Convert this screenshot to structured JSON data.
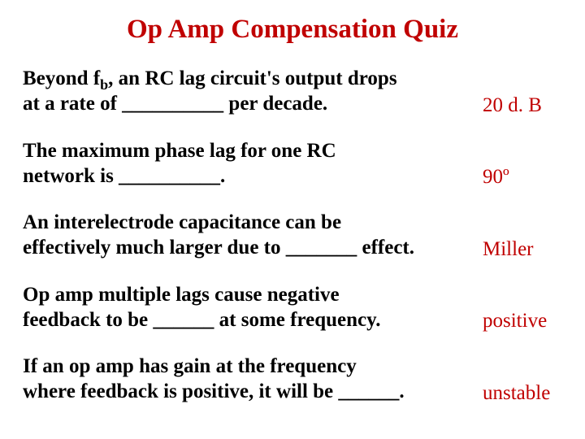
{
  "title": {
    "text": "Op Amp Compensation Quiz",
    "color": "#c00000",
    "fontsize": 33
  },
  "question_fontsize": 25,
  "answer_fontsize": 25,
  "answer_color": "#c00000",
  "items": [
    {
      "q_line1": "Beyond f",
      "q_sub": "b",
      "q_line1b": ", an RC lag circuit's output drops",
      "q_line2": "at a rate of __________ per decade.",
      "answer": "20 d. B"
    },
    {
      "q_line1": "The maximum phase lag for one RC",
      "q_line2": "network is __________.",
      "answer": "90º"
    },
    {
      "q_line1": "An interelectrode capacitance can be",
      "q_line2": "effectively much larger due to _______ effect.",
      "answer": "Miller"
    },
    {
      "q_line1": "Op amp multiple lags cause negative",
      "q_line2": "feedback to be ______ at some frequency.",
      "answer": "positive"
    },
    {
      "q_line1": "If an op amp has gain at the frequency",
      "q_line2": "where feedback is positive, it will be ______.",
      "answer": "unstable"
    }
  ]
}
